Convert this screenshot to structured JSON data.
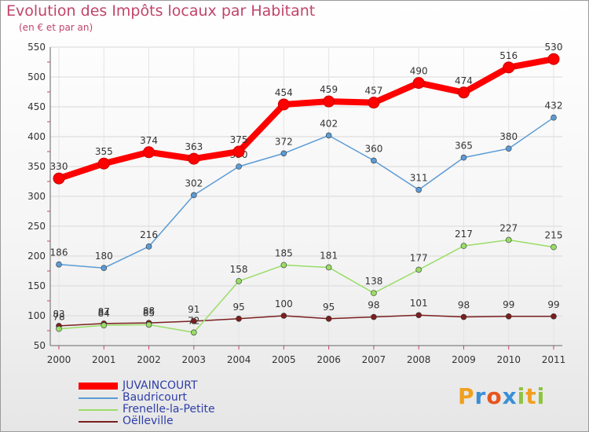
{
  "chart_data": {
    "type": "line",
    "title": "Evolution des Impôts locaux par Habitant",
    "subtitle": "(en € et par an)",
    "x": [
      "2000",
      "2001",
      "2002",
      "2003",
      "2004",
      "2005",
      "2006",
      "2007",
      "2008",
      "2009",
      "2010",
      "2011"
    ],
    "ylim": [
      50,
      550
    ],
    "yticks": [
      50,
      100,
      150,
      200,
      250,
      300,
      350,
      400,
      450,
      500,
      550
    ],
    "series": [
      {
        "name": "JUVAINCOURT",
        "color": "#ff0000",
        "values": [
          330,
          355,
          374,
          363,
          375,
          454,
          459,
          457,
          490,
          474,
          516,
          530
        ]
      },
      {
        "name": "Baudricourt",
        "color": "#5b9bd5",
        "values": [
          186,
          180,
          216,
          302,
          350,
          372,
          402,
          360,
          311,
          365,
          380,
          432
        ]
      },
      {
        "name": "Frenelle-la-Petite",
        "color": "#99dd66",
        "values": [
          78,
          84,
          85,
          72,
          158,
          185,
          181,
          138,
          177,
          217,
          227,
          215
        ]
      },
      {
        "name": "Oëlleville",
        "color": "#7a1f1f",
        "values": [
          83,
          87,
          88,
          91,
          95,
          100,
          95,
          98,
          101,
          98,
          99,
          99
        ]
      }
    ]
  },
  "logo": {
    "text": "Proxiti"
  }
}
